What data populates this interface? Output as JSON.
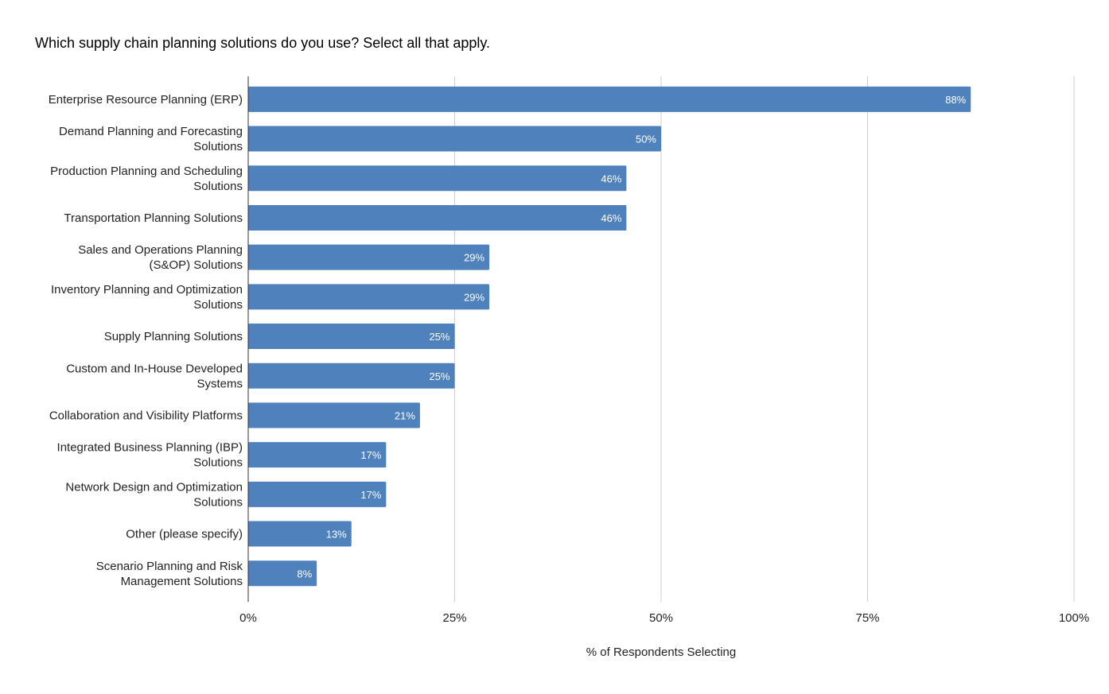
{
  "chart_data": {
    "type": "bar",
    "orientation": "horizontal",
    "title": "Which supply chain planning solutions do you use? Select all that apply.",
    "xlabel": "% of Respondents Selecting",
    "ylabel": "",
    "xlim": [
      0,
      100
    ],
    "x_ticks": [
      "0%",
      "25%",
      "50%",
      "75%",
      "100%"
    ],
    "grid": true,
    "legend": "none",
    "bar_color": "#4f81bd",
    "categories": [
      [
        "Enterprise Resource Planning (ERP)"
      ],
      [
        "Demand Planning and Forecasting",
        "Solutions"
      ],
      [
        "Production Planning and Scheduling",
        "Solutions"
      ],
      [
        "Transportation Planning Solutions"
      ],
      [
        "Sales and Operations Planning",
        "(S&OP) Solutions"
      ],
      [
        "Inventory Planning and Optimization",
        "Solutions"
      ],
      [
        "Supply Planning Solutions"
      ],
      [
        "Custom and In-House Developed",
        "Systems"
      ],
      [
        "Collaboration and Visibility Platforms"
      ],
      [
        "Integrated Business Planning (IBP)",
        "Solutions"
      ],
      [
        "Network Design and Optimization",
        "Solutions"
      ],
      [
        "Other (please specify)"
      ],
      [
        "Scenario Planning and Risk",
        "Management Solutions"
      ]
    ],
    "values": [
      87.5,
      50,
      45.8,
      45.8,
      29.2,
      29.2,
      25,
      25,
      20.8,
      16.7,
      16.7,
      12.5,
      8.3
    ],
    "data_labels": [
      "88%",
      "50%",
      "46%",
      "46%",
      "29%",
      "29%",
      "25%",
      "25%",
      "21%",
      "17%",
      "17%",
      "13%",
      "8%"
    ]
  }
}
